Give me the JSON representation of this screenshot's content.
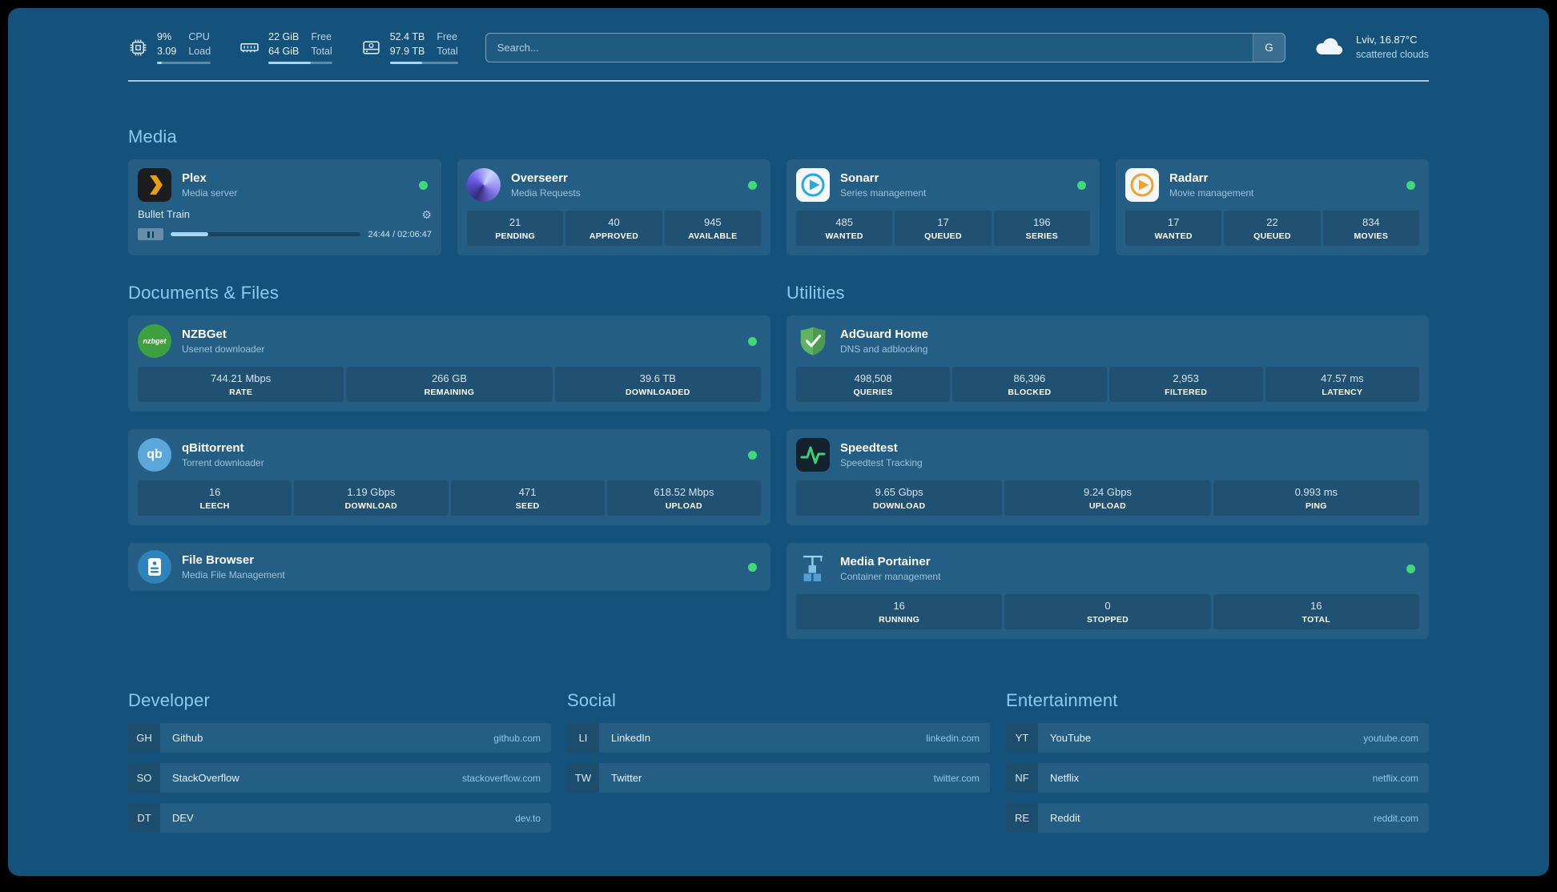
{
  "colors": {
    "background": "#14527b",
    "section_title": "#8fc9ef",
    "status_online": "#3fd97b",
    "progress_fill": "#a6d8f5",
    "bookmark_url": "#8ec9ee"
  },
  "topbar": {
    "resources": [
      {
        "icon": "cpu-icon",
        "values": [
          "9%",
          "3.09"
        ],
        "labels": [
          "CPU",
          "Load"
        ],
        "percent": 9
      },
      {
        "icon": "memory-icon",
        "values": [
          "22 GiB",
          "64 GiB"
        ],
        "labels": [
          "Free",
          "Total"
        ],
        "percent": 66
      },
      {
        "icon": "disk-icon",
        "values": [
          "52.4 TB",
          "97.9 TB"
        ],
        "labels": [
          "Free",
          "Total"
        ],
        "percent": 47
      }
    ],
    "search": {
      "placeholder": "Search...",
      "provider_button": "G"
    },
    "weather": {
      "icon": "cloud-icon",
      "location": "Lviv, 16.87°C",
      "condition": "scattered clouds"
    }
  },
  "media": {
    "title": "Media",
    "plex": {
      "icon": "plex-icon",
      "name": "Plex",
      "desc": "Media server",
      "online": true,
      "now_playing": "Bullet Train",
      "time": "24:44 / 02:06:47",
      "progress_percent": 20
    },
    "overseerr": {
      "icon": "overseerr-icon",
      "name": "Overseerr",
      "desc": "Media Requests",
      "online": true,
      "stats": [
        {
          "value": "21",
          "label": "PENDING"
        },
        {
          "value": "40",
          "label": "APPROVED"
        },
        {
          "value": "945",
          "label": "AVAILABLE"
        }
      ]
    },
    "sonarr": {
      "icon": "sonarr-icon",
      "name": "Sonarr",
      "desc": "Series management",
      "online": true,
      "stats": [
        {
          "value": "485",
          "label": "WANTED"
        },
        {
          "value": "17",
          "label": "QUEUED"
        },
        {
          "value": "196",
          "label": "SERIES"
        }
      ]
    },
    "radarr": {
      "icon": "radarr-icon",
      "name": "Radarr",
      "desc": "Movie management",
      "online": true,
      "stats": [
        {
          "value": "17",
          "label": "WANTED"
        },
        {
          "value": "22",
          "label": "QUEUED"
        },
        {
          "value": "834",
          "label": "MOVIES"
        }
      ]
    }
  },
  "documents": {
    "title": "Documents & Files",
    "nzbget": {
      "icon": "nzbget-icon",
      "icon_text": "nzbget",
      "name": "NZBGet",
      "desc": "Usenet downloader",
      "online": true,
      "stats": [
        {
          "value": "744.21 Mbps",
          "label": "RATE"
        },
        {
          "value": "266 GB",
          "label": "REMAINING"
        },
        {
          "value": "39.6 TB",
          "label": "DOWNLOADED"
        }
      ]
    },
    "qbittorrent": {
      "icon": "qbittorrent-icon",
      "icon_text": "qb",
      "name": "qBittorrent",
      "desc": "Torrent downloader",
      "online": true,
      "stats": [
        {
          "value": "16",
          "label": "LEECH"
        },
        {
          "value": "1.19 Gbps",
          "label": "DOWNLOAD"
        },
        {
          "value": "471",
          "label": "SEED"
        },
        {
          "value": "618.52 Mbps",
          "label": "UPLOAD"
        }
      ]
    },
    "filebrowser": {
      "icon": "filebrowser-icon",
      "name": "File Browser",
      "desc": "Media File Management",
      "online": true
    }
  },
  "utilities": {
    "title": "Utilities",
    "adguard": {
      "icon": "adguard-icon",
      "name": "AdGuard Home",
      "desc": "DNS and adblocking",
      "stats": [
        {
          "value": "498,508",
          "label": "QUERIES"
        },
        {
          "value": "86,396",
          "label": "BLOCKED"
        },
        {
          "value": "2,953",
          "label": "FILTERED"
        },
        {
          "value": "47.57 ms",
          "label": "LATENCY"
        }
      ]
    },
    "speedtest": {
      "icon": "speedtest-icon",
      "name": "Speedtest",
      "desc": "Speedtest Tracking",
      "stats": [
        {
          "value": "9.65 Gbps",
          "label": "DOWNLOAD"
        },
        {
          "value": "9.24 Gbps",
          "label": "UPLOAD"
        },
        {
          "value": "0.993 ms",
          "label": "PING"
        }
      ]
    },
    "portainer": {
      "icon": "portainer-icon",
      "name": "Media Portainer",
      "desc": "Container management",
      "online": true,
      "stats": [
        {
          "value": "16",
          "label": "RUNNING"
        },
        {
          "value": "0",
          "label": "STOPPED"
        },
        {
          "value": "16",
          "label": "TOTAL"
        }
      ]
    }
  },
  "bookmarks": {
    "developer": {
      "title": "Developer",
      "items": [
        {
          "abbr": "GH",
          "name": "Github",
          "url": "github.com"
        },
        {
          "abbr": "SO",
          "name": "StackOverflow",
          "url": "stackoverflow.com"
        },
        {
          "abbr": "DT",
          "name": "DEV",
          "url": "dev.to"
        }
      ]
    },
    "social": {
      "title": "Social",
      "items": [
        {
          "abbr": "LI",
          "name": "LinkedIn",
          "url": "linkedin.com"
        },
        {
          "abbr": "TW",
          "name": "Twitter",
          "url": "twitter.com"
        }
      ]
    },
    "entertainment": {
      "title": "Entertainment",
      "items": [
        {
          "abbr": "YT",
          "name": "YouTube",
          "url": "youtube.com"
        },
        {
          "abbr": "NF",
          "name": "Netflix",
          "url": "netflix.com"
        },
        {
          "abbr": "RE",
          "name": "Reddit",
          "url": "reddit.com"
        }
      ]
    }
  }
}
